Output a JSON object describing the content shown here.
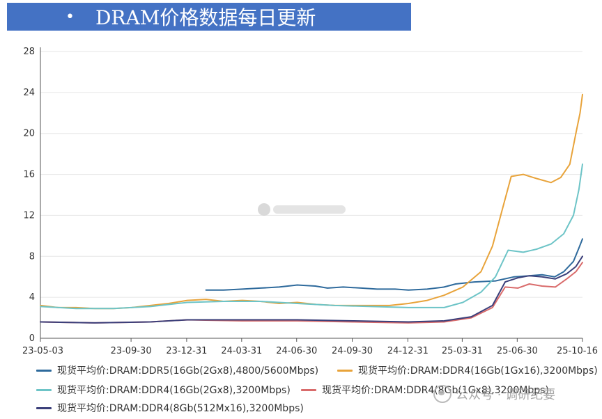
{
  "header": {
    "bullet": "•",
    "title": "DRAM价格数据每日更新"
  },
  "colors": {
    "title_bg": "#4472c4",
    "grid": "#e6e6e6",
    "axis": "#555555"
  },
  "chart_data": {
    "type": "line",
    "x_type": "date",
    "x_ticks": [
      "23-05-03",
      "23-09-30",
      "23-12-31",
      "24-03-31",
      "24-06-30",
      "24-09-30",
      "24-12-31",
      "25-03-31",
      "25-06-30",
      "25-10-16"
    ],
    "ylim": [
      0,
      28
    ],
    "y_ticks": [
      0,
      4,
      8,
      12,
      16,
      20,
      24,
      28
    ],
    "grid": "horizontal",
    "legend_position": "bottom",
    "series": [
      {
        "name": "现货平均价:DRAM:DDR5(16Gb(2Gx8),4800/5600Mbps)",
        "color": "#2e6a9c",
        "points": [
          [
            "2024-02-01",
            4.7
          ],
          [
            "2024-03-01",
            4.7
          ],
          [
            "2024-04-01",
            4.8
          ],
          [
            "2024-05-01",
            4.9
          ],
          [
            "2024-06-01",
            5.0
          ],
          [
            "2024-07-01",
            5.2
          ],
          [
            "2024-07-31",
            5.1
          ],
          [
            "2024-08-20",
            4.9
          ],
          [
            "2024-09-15",
            5.0
          ],
          [
            "2024-10-15",
            4.9
          ],
          [
            "2024-11-10",
            4.8
          ],
          [
            "2024-12-10",
            4.8
          ],
          [
            "2025-01-01",
            4.7
          ],
          [
            "2025-02-01",
            4.8
          ],
          [
            "2025-03-01",
            5.0
          ],
          [
            "2025-03-20",
            5.3
          ],
          [
            "2025-04-20",
            5.5
          ],
          [
            "2025-05-25",
            5.6
          ],
          [
            "2025-06-25",
            6.0
          ],
          [
            "2025-07-20",
            6.1
          ],
          [
            "2025-08-10",
            6.2
          ],
          [
            "2025-08-31",
            6.0
          ],
          [
            "2025-09-15",
            6.5
          ],
          [
            "2025-10-01",
            7.5
          ],
          [
            "2025-10-10",
            8.8
          ],
          [
            "2025-10-16",
            9.7
          ]
        ]
      },
      {
        "name": "现货平均价:DRAM:DDR4(16Gb(1Gx16),3200Mbps)",
        "color": "#e8a33a",
        "points": [
          [
            "2023-05-03",
            3.2
          ],
          [
            "2023-06-01",
            3.0
          ],
          [
            "2023-07-01",
            3.0
          ],
          [
            "2023-08-01",
            2.9
          ],
          [
            "2023-09-01",
            2.9
          ],
          [
            "2023-10-01",
            3.0
          ],
          [
            "2023-11-01",
            3.2
          ],
          [
            "2023-12-01",
            3.4
          ],
          [
            "2024-01-01",
            3.7
          ],
          [
            "2024-02-01",
            3.8
          ],
          [
            "2024-03-01",
            3.6
          ],
          [
            "2024-04-01",
            3.7
          ],
          [
            "2024-05-01",
            3.6
          ],
          [
            "2024-06-01",
            3.4
          ],
          [
            "2024-07-01",
            3.5
          ],
          [
            "2024-08-01",
            3.3
          ],
          [
            "2024-09-01",
            3.2
          ],
          [
            "2024-10-01",
            3.2
          ],
          [
            "2024-11-01",
            3.2
          ],
          [
            "2024-12-01",
            3.2
          ],
          [
            "2025-01-01",
            3.4
          ],
          [
            "2025-02-01",
            3.7
          ],
          [
            "2025-03-01",
            4.2
          ],
          [
            "2025-04-01",
            5.0
          ],
          [
            "2025-05-01",
            6.5
          ],
          [
            "2025-05-20",
            9.0
          ],
          [
            "2025-06-05",
            12.5
          ],
          [
            "2025-06-20",
            15.8
          ],
          [
            "2025-07-10",
            16.0
          ],
          [
            "2025-08-01",
            15.6
          ],
          [
            "2025-08-25",
            15.2
          ],
          [
            "2025-09-10",
            15.7
          ],
          [
            "2025-09-25",
            17.0
          ],
          [
            "2025-10-05",
            20.0
          ],
          [
            "2025-10-12",
            22.0
          ],
          [
            "2025-10-16",
            23.8
          ]
        ]
      },
      {
        "name": "现货平均价:DRAM:DDR4(16Gb(2Gx8),3200Mbps)",
        "color": "#6dc4c7",
        "points": [
          [
            "2023-05-03",
            3.1
          ],
          [
            "2023-07-01",
            2.9
          ],
          [
            "2023-09-01",
            2.9
          ],
          [
            "2023-11-01",
            3.1
          ],
          [
            "2024-01-01",
            3.5
          ],
          [
            "2024-03-01",
            3.6
          ],
          [
            "2024-05-01",
            3.6
          ],
          [
            "2024-07-01",
            3.4
          ],
          [
            "2024-09-01",
            3.2
          ],
          [
            "2024-11-01",
            3.1
          ],
          [
            "2025-01-01",
            3.0
          ],
          [
            "2025-03-01",
            3.0
          ],
          [
            "2025-04-01",
            3.5
          ],
          [
            "2025-05-01",
            4.5
          ],
          [
            "2025-05-25",
            6.0
          ],
          [
            "2025-06-15",
            8.6
          ],
          [
            "2025-07-10",
            8.4
          ],
          [
            "2025-08-01",
            8.7
          ],
          [
            "2025-08-25",
            9.2
          ],
          [
            "2025-09-15",
            10.2
          ],
          [
            "2025-10-01",
            12.0
          ],
          [
            "2025-10-10",
            14.5
          ],
          [
            "2025-10-16",
            17.0
          ]
        ]
      },
      {
        "name": "现货平均价:DRAM:DDR4(8Gb(1Gx8),3200Mbps)",
        "color": "#d96b6b",
        "points": [
          [
            "2023-05-03",
            1.6
          ],
          [
            "2023-08-01",
            1.5
          ],
          [
            "2023-11-01",
            1.6
          ],
          [
            "2024-01-01",
            1.8
          ],
          [
            "2024-04-01",
            1.7
          ],
          [
            "2024-07-01",
            1.7
          ],
          [
            "2024-10-01",
            1.6
          ],
          [
            "2025-01-01",
            1.5
          ],
          [
            "2025-03-01",
            1.6
          ],
          [
            "2025-04-15",
            2.0
          ],
          [
            "2025-05-20",
            3.0
          ],
          [
            "2025-06-10",
            5.0
          ],
          [
            "2025-07-01",
            4.9
          ],
          [
            "2025-07-20",
            5.3
          ],
          [
            "2025-08-10",
            5.1
          ],
          [
            "2025-09-01",
            5.0
          ],
          [
            "2025-09-20",
            5.8
          ],
          [
            "2025-10-05",
            6.5
          ],
          [
            "2025-10-16",
            7.4
          ]
        ]
      },
      {
        "name": "现货平均价:DRAM:DDR4(8Gb(512Mx16),3200Mbps)",
        "color": "#3b3f7a",
        "points": [
          [
            "2023-05-03",
            1.6
          ],
          [
            "2023-08-01",
            1.5
          ],
          [
            "2023-11-01",
            1.6
          ],
          [
            "2024-01-01",
            1.8
          ],
          [
            "2024-04-01",
            1.8
          ],
          [
            "2024-07-01",
            1.8
          ],
          [
            "2024-10-01",
            1.7
          ],
          [
            "2025-01-01",
            1.6
          ],
          [
            "2025-03-01",
            1.7
          ],
          [
            "2025-04-15",
            2.1
          ],
          [
            "2025-05-20",
            3.2
          ],
          [
            "2025-06-10",
            5.5
          ],
          [
            "2025-07-01",
            5.9
          ],
          [
            "2025-07-20",
            6.1
          ],
          [
            "2025-08-10",
            6.0
          ],
          [
            "2025-09-01",
            5.8
          ],
          [
            "2025-09-20",
            6.3
          ],
          [
            "2025-10-05",
            7.0
          ],
          [
            "2025-10-16",
            8.0
          ]
        ]
      }
    ]
  },
  "watermark": {
    "text": "公众号 · 调研纪要"
  }
}
